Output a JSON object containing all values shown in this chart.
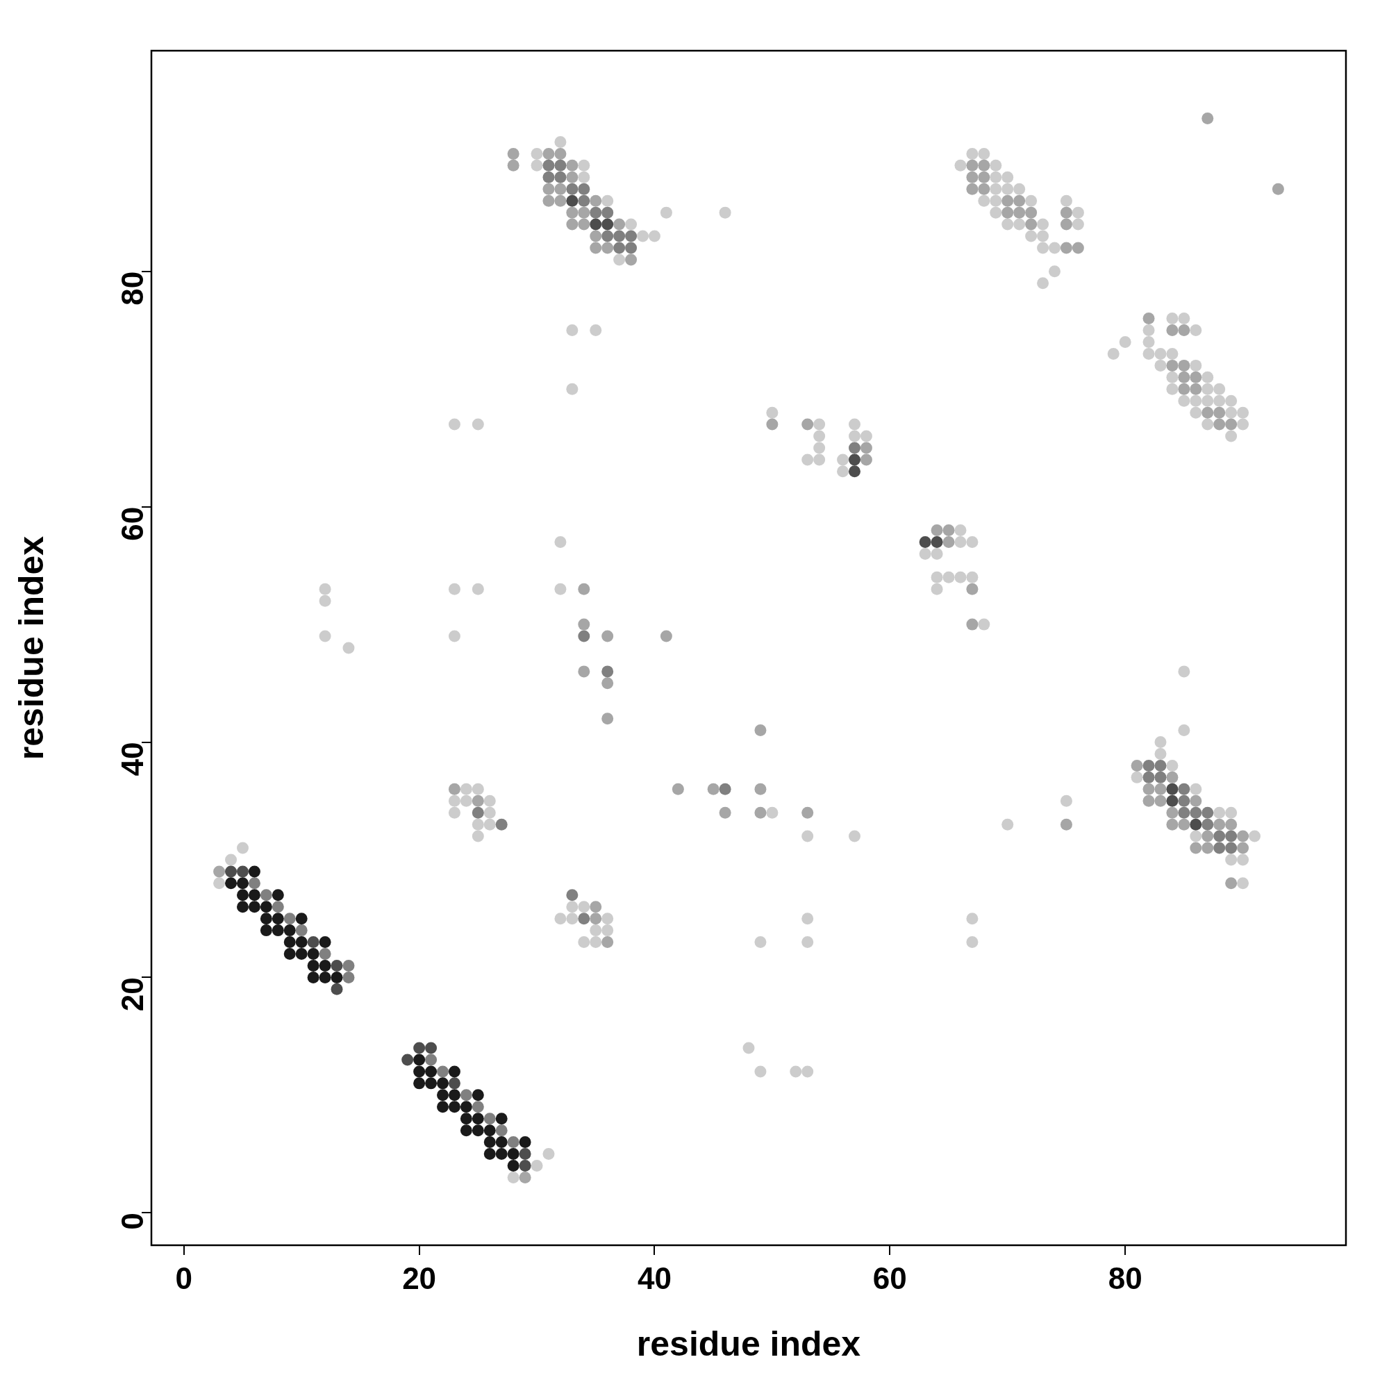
{
  "chart_data": {
    "type": "scatter",
    "xlabel": "residue index",
    "ylabel": "residue index",
    "xlim": [
      -2.76,
      98.76
    ],
    "ylim": [
      -2.76,
      98.76
    ],
    "xticks": [
      0,
      20,
      40,
      60,
      80
    ],
    "yticks": [
      0,
      20,
      40,
      60,
      80
    ],
    "grid": false,
    "legend": false,
    "marker": "circle",
    "series": [
      {
        "color": "#1a1a1a",
        "x": [
          6,
          4,
          5,
          5,
          6,
          8,
          5,
          6,
          7,
          7,
          8,
          10,
          7,
          8,
          9,
          9,
          10,
          12,
          9,
          10,
          11,
          11,
          12,
          11,
          12,
          13,
          20,
          20,
          21,
          23,
          20,
          21,
          22,
          22,
          23,
          25,
          22,
          23,
          24,
          24,
          25,
          27,
          24,
          25,
          26,
          26,
          27,
          29,
          26,
          27,
          28,
          28
        ],
        "values": [
          29,
          28,
          28,
          27,
          27,
          27,
          26,
          26,
          26,
          25,
          25,
          25,
          24,
          24,
          24,
          23,
          23,
          23,
          22,
          22,
          22,
          21,
          21,
          20,
          20,
          20,
          13,
          12,
          12,
          12,
          11,
          11,
          11,
          10,
          10,
          10,
          9,
          9,
          9,
          8,
          8,
          8,
          7,
          7,
          7,
          6,
          6,
          6,
          5,
          5,
          5,
          4
        ]
      },
      {
        "color": "#4d4d4d",
        "x": [
          4,
          5,
          11,
          13,
          13,
          20,
          21,
          19,
          23,
          29,
          29,
          33,
          35,
          36,
          84,
          84,
          86,
          57,
          57,
          63,
          64
        ],
        "values": [
          29,
          29,
          23,
          21,
          19,
          14,
          14,
          13,
          11,
          5,
          4,
          86,
          84,
          84,
          36,
          35,
          33,
          64,
          63,
          57,
          57
        ]
      },
      {
        "color": "#808080",
        "x": [
          6,
          7,
          8,
          9,
          10,
          12,
          14,
          14,
          21,
          22,
          24,
          25,
          26,
          27,
          28,
          31,
          32,
          31,
          32,
          33,
          34,
          34,
          35,
          36,
          36,
          37,
          38,
          37,
          38,
          82,
          83,
          82,
          83,
          85,
          85,
          85,
          86,
          87,
          87,
          88,
          89,
          88,
          89,
          57,
          34,
          36,
          46,
          25,
          27,
          33,
          34
        ],
        "values": [
          28,
          27,
          26,
          25,
          24,
          22,
          21,
          20,
          13,
          12,
          10,
          9,
          8,
          7,
          6,
          89,
          89,
          88,
          88,
          87,
          87,
          86,
          85,
          85,
          83,
          83,
          83,
          82,
          82,
          38,
          38,
          37,
          37,
          36,
          35,
          34,
          34,
          34,
          33,
          32,
          32,
          31,
          31,
          65,
          49,
          46,
          36,
          34,
          33,
          27,
          25
        ]
      },
      {
        "color": "#a6a6a6",
        "x": [
          3,
          29,
          28,
          31,
          32,
          28,
          33,
          33,
          31,
          32,
          31,
          32,
          35,
          33,
          34,
          33,
          34,
          37,
          35,
          35,
          36,
          38,
          67,
          68,
          67,
          68,
          67,
          68,
          70,
          71,
          70,
          71,
          72,
          75,
          72,
          75,
          75,
          76,
          82,
          84,
          85,
          84,
          85,
          85,
          86,
          85,
          86,
          87,
          88,
          88,
          89,
          81,
          84,
          82,
          83,
          82,
          83,
          86,
          84,
          84,
          85,
          88,
          89,
          87,
          90,
          86,
          87,
          90,
          89,
          87,
          93,
          50,
          53,
          58,
          58,
          64,
          65,
          65,
          67,
          67,
          34,
          34,
          36,
          34,
          36,
          36,
          41,
          49,
          42,
          45,
          49,
          46,
          49,
          53,
          75,
          23,
          25,
          35,
          35,
          36
        ],
        "values": [
          29,
          3,
          90,
          90,
          90,
          89,
          89,
          88,
          87,
          87,
          86,
          86,
          86,
          85,
          85,
          84,
          84,
          84,
          83,
          82,
          82,
          81,
          89,
          89,
          88,
          88,
          87,
          87,
          86,
          86,
          85,
          85,
          85,
          85,
          84,
          84,
          82,
          82,
          76,
          75,
          75,
          72,
          72,
          71,
          71,
          70,
          70,
          68,
          68,
          67,
          67,
          38,
          37,
          36,
          36,
          35,
          35,
          35,
          34,
          33,
          33,
          33,
          33,
          32,
          32,
          31,
          31,
          31,
          28,
          93,
          87,
          67,
          67,
          65,
          64,
          58,
          58,
          57,
          53,
          50,
          53,
          50,
          49,
          46,
          45,
          42,
          49,
          41,
          36,
          36,
          36,
          34,
          34,
          34,
          33,
          36,
          35,
          26,
          25,
          23
        ]
      },
      {
        "color": "#cccccc",
        "x": [
          5,
          4,
          3,
          31,
          30,
          28,
          32,
          30,
          30,
          34,
          34,
          36,
          41,
          46,
          38,
          39,
          40,
          37,
          67,
          68,
          66,
          69,
          69,
          70,
          69,
          70,
          71,
          68,
          69,
          72,
          75,
          69,
          76,
          70,
          71,
          73,
          76,
          72,
          73,
          73,
          74,
          74,
          73,
          84,
          85,
          82,
          86,
          80,
          82,
          79,
          82,
          83,
          84,
          83,
          86,
          84,
          87,
          84,
          87,
          88,
          85,
          86,
          87,
          88,
          89,
          86,
          89,
          90,
          87,
          90,
          89,
          85,
          83,
          83,
          84,
          81,
          86,
          88,
          89,
          86,
          91,
          89,
          90,
          90,
          33,
          35,
          33,
          23,
          25,
          50,
          54,
          54,
          54,
          53,
          54,
          56,
          56,
          57,
          57,
          58,
          66,
          66,
          67,
          63,
          64,
          64,
          65,
          66,
          67,
          64,
          68,
          32,
          12,
          12,
          12,
          14,
          23,
          25,
          23,
          32,
          85,
          50,
          53,
          57,
          70,
          75,
          24,
          25,
          23,
          24,
          26,
          23,
          26,
          25,
          26,
          25,
          33,
          34,
          32,
          33,
          36,
          35,
          36,
          34,
          35,
          49,
          53,
          53,
          67,
          67,
          48,
          49,
          52,
          53
        ],
        "values": [
          31,
          30,
          28,
          5,
          4,
          3,
          91,
          90,
          89,
          89,
          88,
          86,
          85,
          85,
          84,
          83,
          83,
          81,
          90,
          90,
          89,
          89,
          88,
          88,
          87,
          87,
          87,
          86,
          86,
          86,
          86,
          85,
          85,
          84,
          84,
          84,
          84,
          83,
          83,
          82,
          82,
          80,
          79,
          76,
          76,
          75,
          75,
          74,
          74,
          73,
          73,
          73,
          73,
          72,
          72,
          71,
          71,
          70,
          70,
          70,
          69,
          69,
          69,
          69,
          69,
          68,
          68,
          68,
          67,
          67,
          66,
          41,
          40,
          39,
          38,
          37,
          36,
          34,
          34,
          32,
          32,
          30,
          30,
          28,
          75,
          75,
          70,
          67,
          67,
          68,
          67,
          66,
          65,
          64,
          64,
          64,
          63,
          67,
          66,
          66,
          58,
          57,
          57,
          56,
          56,
          54,
          54,
          54,
          54,
          53,
          50,
          57,
          53,
          52,
          49,
          48,
          53,
          53,
          49,
          53,
          46,
          34,
          32,
          32,
          33,
          35,
          36,
          36,
          35,
          35,
          35,
          34,
          34,
          33,
          33,
          32,
          26,
          26,
          25,
          25,
          25,
          24,
          24,
          23,
          23,
          23,
          25,
          23,
          25,
          23,
          14,
          12,
          12,
          12
        ]
      }
    ]
  }
}
